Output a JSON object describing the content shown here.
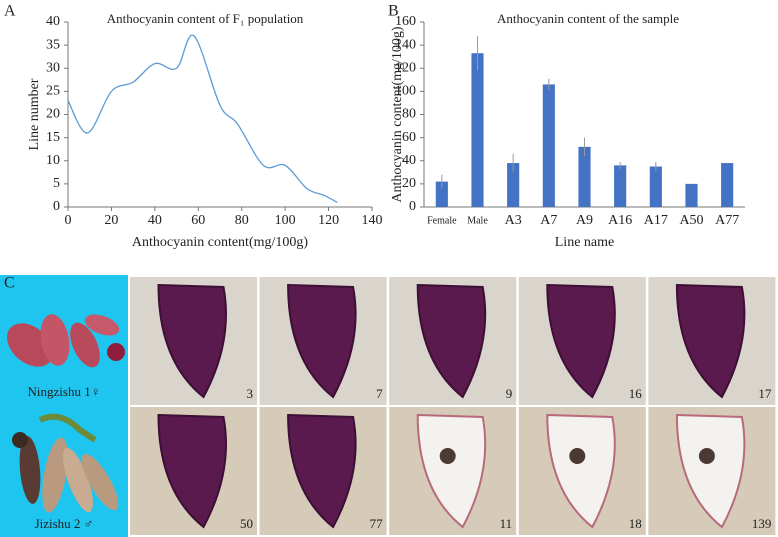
{
  "chart_data": [
    {
      "type": "line",
      "panel": "A",
      "title": "Anthocyanin content of F₁ population",
      "x_label": "Anthocyanin content(mg/100g)",
      "y_label": "Line number",
      "x": [
        0,
        9,
        20,
        30,
        40,
        50,
        58,
        70,
        78,
        90,
        100,
        110,
        118,
        124
      ],
      "values": [
        23,
        16,
        25,
        27,
        31,
        30,
        37,
        22,
        18,
        9,
        9,
        4,
        2.5,
        1
      ],
      "color": "#5b9bd5",
      "xlim": [
        0,
        140
      ],
      "xticks": [
        0,
        20,
        40,
        60,
        80,
        100,
        120,
        140
      ],
      "ylim": [
        0,
        40
      ],
      "yticks": [
        0,
        5,
        10,
        15,
        20,
        25,
        30,
        35,
        40
      ]
    },
    {
      "type": "bar",
      "panel": "B",
      "title": "Anthocyanin content of the sample",
      "x_label": "Line name",
      "y_label": "Anthocyanin content(mg/100g)",
      "categories": [
        "Female",
        "Male",
        "A3",
        "A7",
        "A9",
        "A16",
        "A17",
        "A50",
        "A77"
      ],
      "values": [
        22,
        133,
        38,
        106,
        52,
        36,
        35,
        20,
        38
      ],
      "errors": [
        6,
        15,
        8,
        5,
        8,
        3,
        4,
        0,
        0
      ],
      "color": "#4472c4",
      "ylim": [
        0,
        160
      ],
      "yticks": [
        0,
        20,
        40,
        60,
        80,
        100,
        120,
        140,
        160
      ]
    }
  ],
  "panel_c": {
    "label": "C",
    "parents": [
      "Ningzishu 1♀",
      "Jizishu 2 ♂"
    ],
    "samples": [
      "3",
      "7",
      "9",
      "16",
      "17",
      "50",
      "77",
      "11",
      "18",
      "139"
    ]
  }
}
